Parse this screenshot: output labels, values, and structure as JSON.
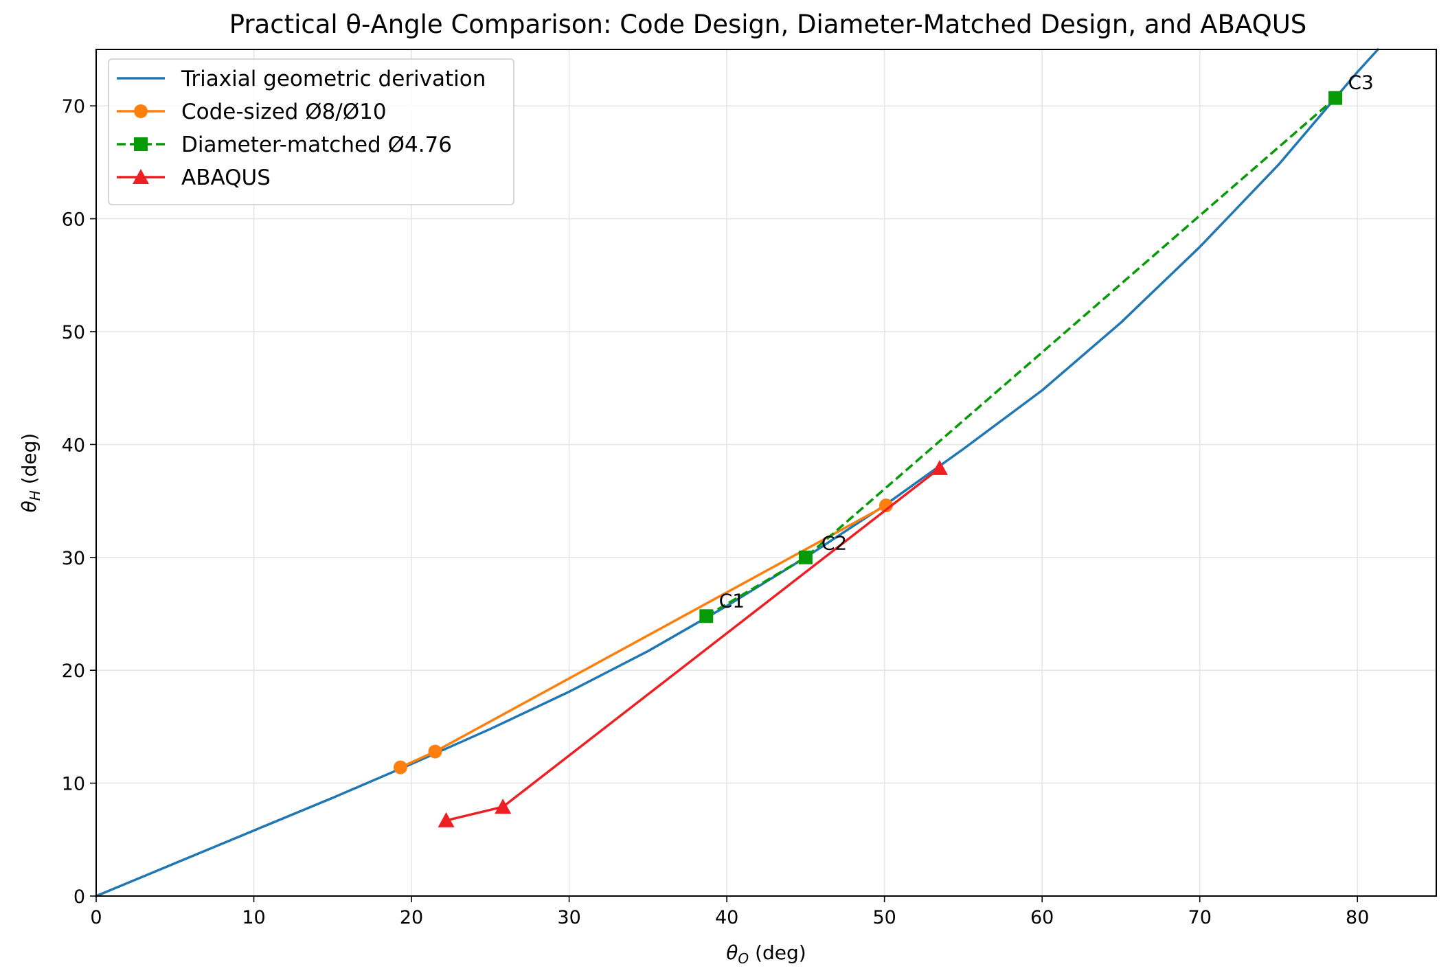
{
  "chart_data": {
    "type": "line",
    "title": "Practical θ-Angle Comparison: Code Design, Diameter-Matched Design, and ABAQUS",
    "xlabel": {
      "main": "θ",
      "sub": "O",
      "suffix": " (deg)"
    },
    "ylabel": {
      "main": "θ",
      "sub": "H",
      "suffix": " (deg)"
    },
    "xlim": [
      0,
      85
    ],
    "ylim": [
      0,
      75
    ],
    "xticks": [
      "0",
      "10",
      "20",
      "30",
      "40",
      "50",
      "60",
      "70",
      "80"
    ],
    "yticks": [
      "0",
      "10",
      "20",
      "30",
      "40",
      "50",
      "60",
      "70"
    ],
    "grid": true,
    "legend_position": "top-left",
    "series": [
      {
        "name": "Triaxial geometric derivation",
        "color": "#1f77b4",
        "style": "solid",
        "marker": "none",
        "x": [
          0,
          5,
          10,
          15,
          20,
          25,
          30,
          35,
          40,
          45,
          50,
          55,
          60,
          65,
          70,
          75,
          80,
          81.3
        ],
        "y": [
          0,
          2.9,
          5.8,
          8.7,
          11.7,
          14.8,
          18.1,
          21.7,
          25.7,
          30.0,
          34.6,
          39.6,
          44.8,
          50.8,
          57.5,
          64.8,
          73.0,
          75.0
        ]
      },
      {
        "name": "Code-sized Ø8/Ø10",
        "color": "#ff7f0e",
        "style": "solid",
        "marker": "circle",
        "x": [
          19.3,
          21.5,
          50.1
        ],
        "y": [
          11.4,
          12.8,
          34.6
        ]
      },
      {
        "name": "Diameter-matched Ø4.76",
        "color": "#069a06",
        "style": "dashed",
        "marker": "square",
        "x": [
          38.7,
          45.0,
          78.6
        ],
        "y": [
          24.8,
          30.0,
          70.7
        ]
      },
      {
        "name": "ABAQUS",
        "color": "#ee1f23",
        "style": "solid",
        "marker": "triangle",
        "x": [
          22.2,
          25.8,
          53.5
        ],
        "y": [
          6.7,
          7.9,
          37.9
        ]
      }
    ],
    "annotations": [
      {
        "text": "C1",
        "x": 39.5,
        "y": 26.2
      },
      {
        "text": "C2",
        "x": 46.0,
        "y": 31.3
      },
      {
        "text": "C3",
        "x": 79.4,
        "y": 72.1
      }
    ]
  }
}
